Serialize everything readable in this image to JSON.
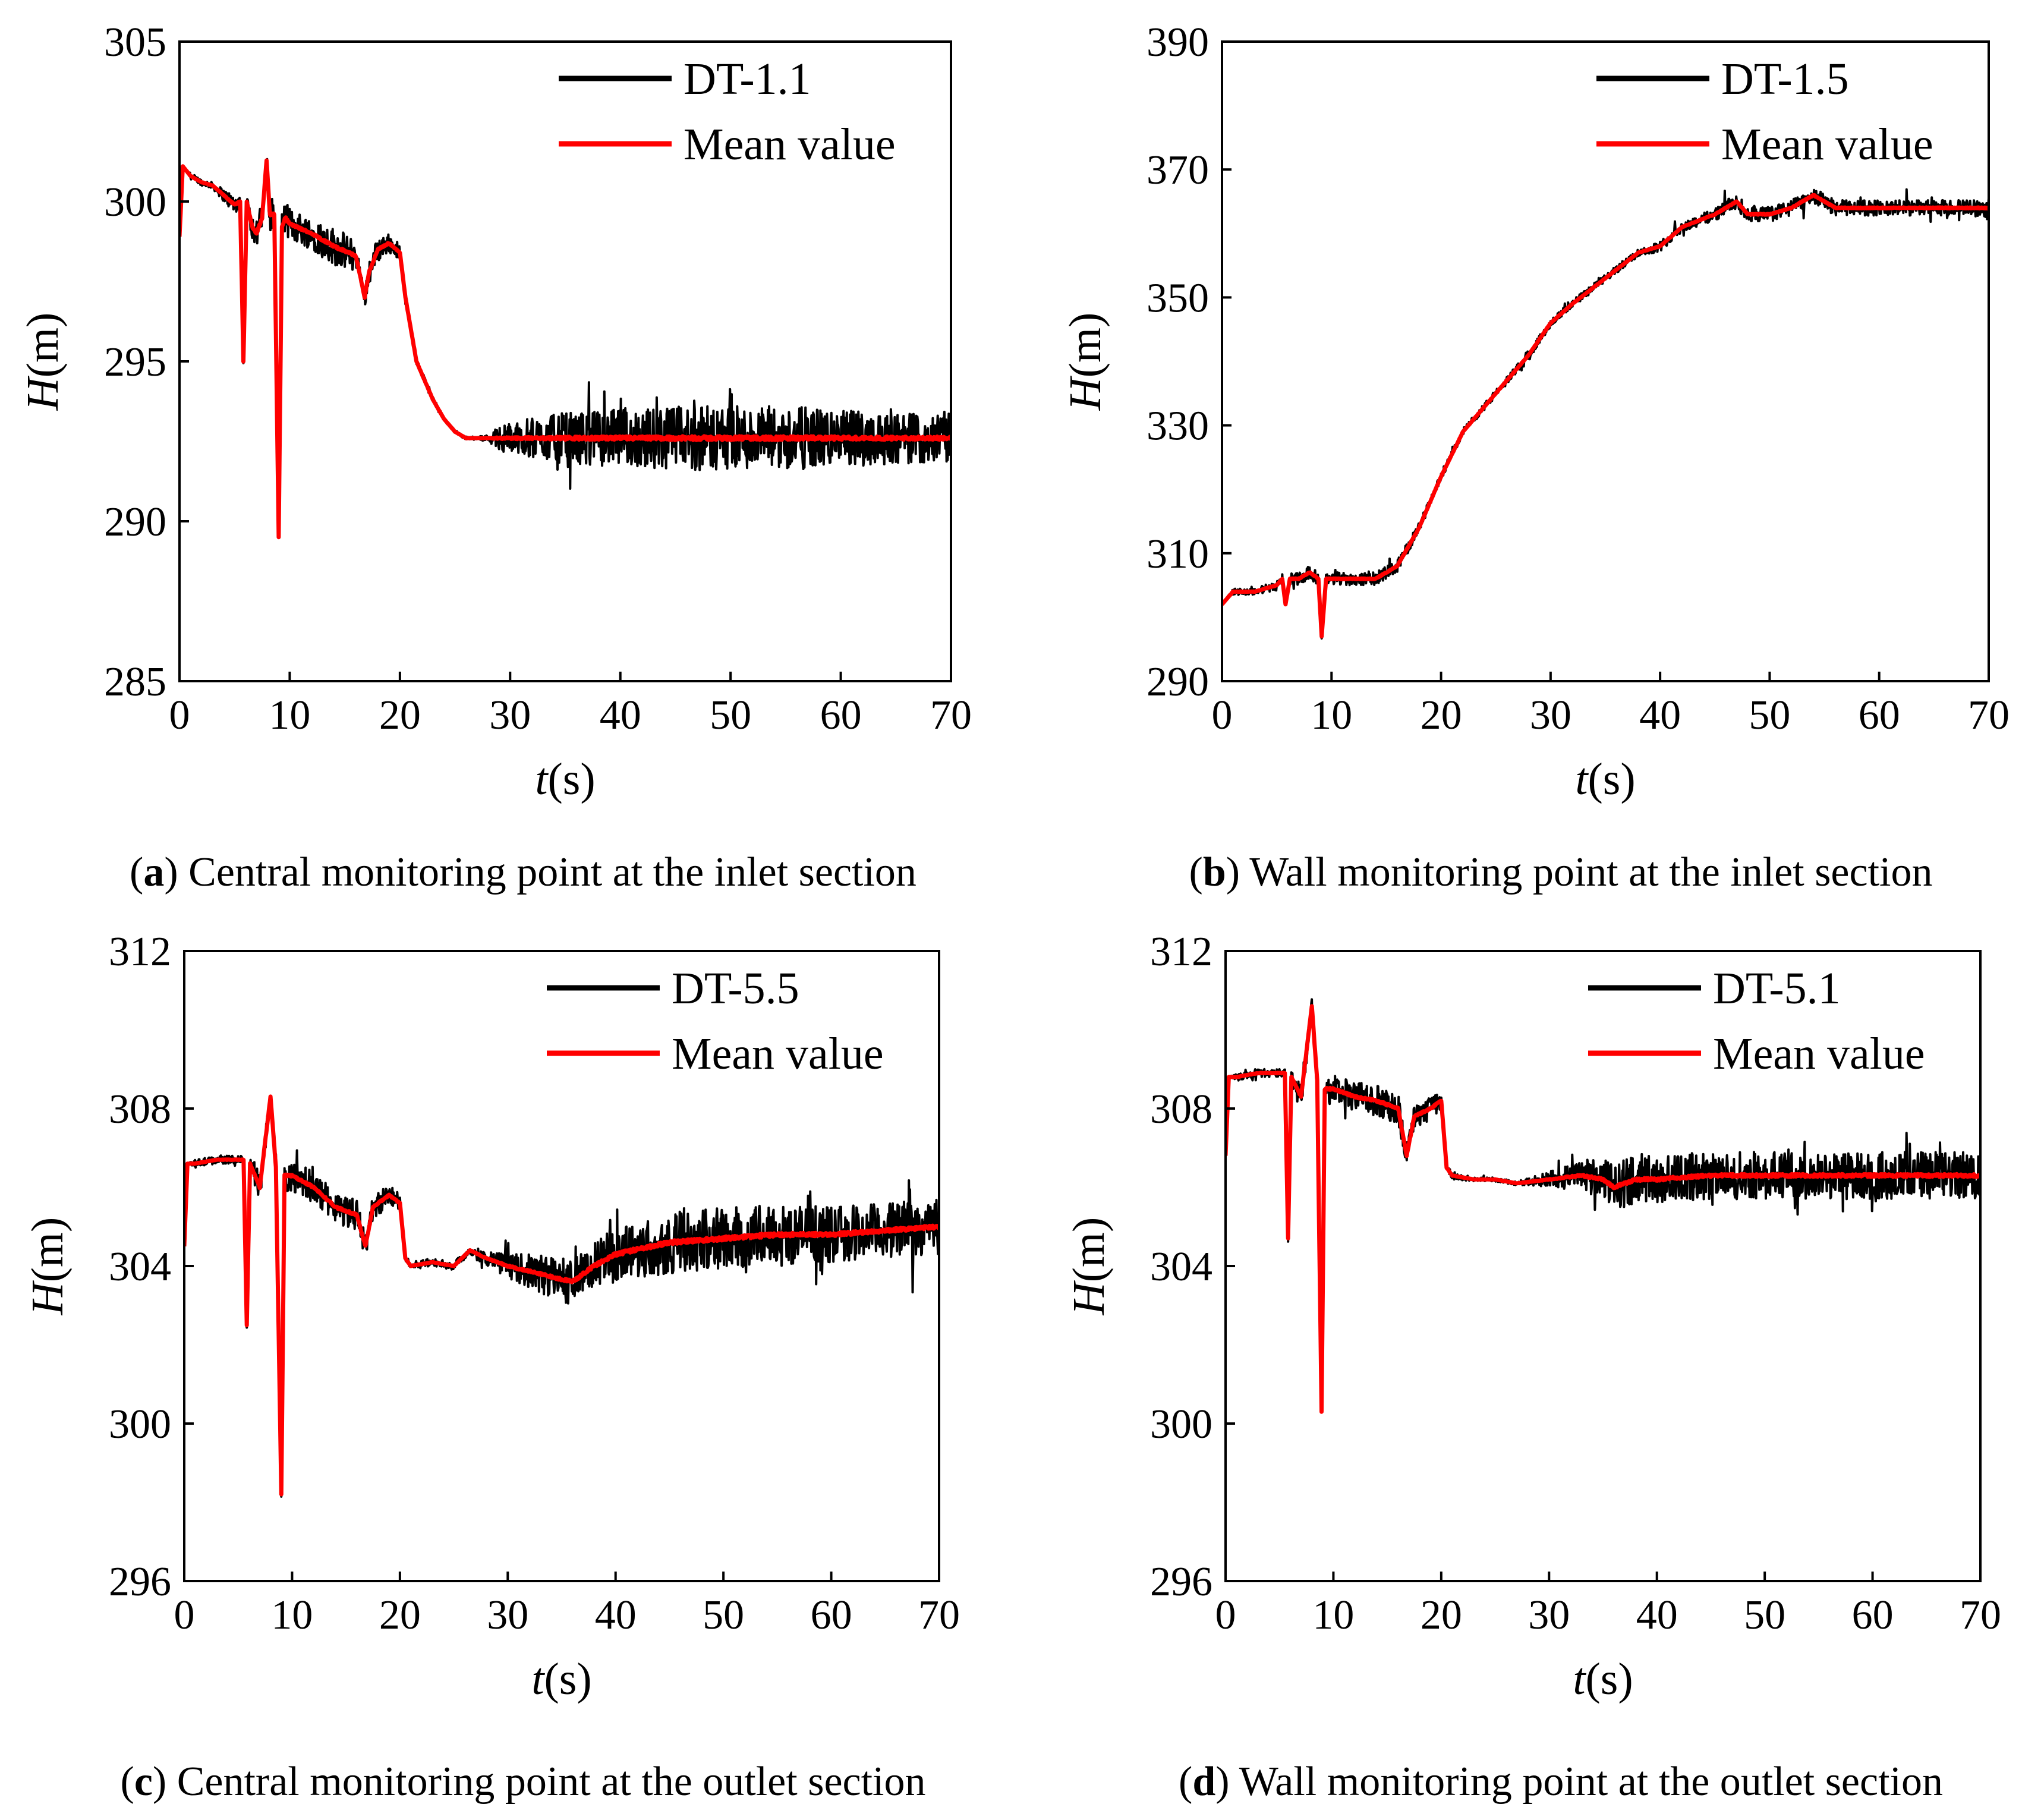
{
  "chart_data": [
    {
      "type": "line",
      "panel": "a",
      "caption_letter": "a",
      "caption_text": " Central monitoring point at the inlet section",
      "xlabel_var": "t",
      "xlabel_unit": "(s)",
      "ylabel_var": "H",
      "ylabel_unit": "(m)",
      "xlim": [
        0,
        70
      ],
      "ylim": [
        285,
        305
      ],
      "xticks": [
        0,
        10,
        20,
        30,
        40,
        50,
        60,
        70
      ],
      "yticks": [
        285,
        290,
        295,
        300,
        305
      ],
      "legend_position": "top-right",
      "series": [
        {
          "name": "DT-1.1",
          "color": "#000000"
        },
        {
          "name": "Mean value",
          "color": "#ff0000"
        }
      ],
      "x": [
        0,
        0.3,
        1,
        2,
        3,
        4,
        5,
        5.5,
        5.8,
        6.1,
        6.6,
        7,
        7.5,
        7.9,
        8.2,
        8.6,
        9,
        9.3,
        9.6,
        10,
        12,
        14,
        16,
        16.8,
        17.2,
        18,
        19,
        20,
        20.5,
        21,
        21.5,
        22,
        23,
        24,
        25,
        26,
        27,
        28,
        29,
        30,
        35,
        40,
        45,
        50,
        55,
        60,
        65,
        70
      ],
      "mean": [
        298.9,
        301.1,
        300.8,
        300.6,
        300.5,
        300.2,
        299.9,
        300.0,
        295.0,
        300.0,
        299.2,
        299.0,
        299.5,
        301.3,
        299.6,
        299.6,
        289.5,
        299.2,
        299.5,
        299.3,
        299.0,
        298.6,
        298.3,
        297.0,
        297.8,
        298.5,
        298.7,
        298.4,
        297.0,
        296.0,
        295.0,
        294.6,
        293.8,
        293.2,
        292.8,
        292.6,
        292.6,
        292.6,
        292.6,
        292.6,
        292.6,
        292.6,
        292.6,
        292.6,
        292.6,
        292.6,
        292.6,
        292.6
      ],
      "noise_amp": [
        0,
        0,
        0.1,
        0.1,
        0.1,
        0.2,
        0.3,
        0.2,
        0.1,
        0.2,
        0.4,
        0.5,
        0.5,
        0.3,
        0.5,
        0.5,
        0.1,
        0.5,
        0.5,
        0.5,
        0.5,
        0.6,
        0.5,
        0.3,
        0.4,
        0.4,
        0.3,
        0.2,
        0.1,
        0.1,
        0.1,
        0.1,
        0.1,
        0.05,
        0.05,
        0.05,
        0.05,
        0.1,
        0.4,
        0.5,
        0.8,
        0.9,
        1.0,
        1.0,
        1.0,
        0.9,
        0.8,
        0.8
      ]
    },
    {
      "type": "line",
      "panel": "b",
      "caption_letter": "b",
      "caption_text": " Wall monitoring point at the inlet section",
      "xlabel_var": "t",
      "xlabel_unit": "(s)",
      "ylabel_var": "H",
      "ylabel_unit": "(m)",
      "xlim": [
        0,
        70
      ],
      "ylim": [
        290,
        390
      ],
      "xticks": [
        0,
        10,
        20,
        30,
        40,
        50,
        60,
        70
      ],
      "yticks": [
        290,
        310,
        330,
        350,
        370,
        390
      ],
      "legend_position": "top-right",
      "series": [
        {
          "name": "DT-1.5",
          "color": "#000000"
        },
        {
          "name": "Mean value",
          "color": "#ff0000"
        }
      ],
      "x": [
        0,
        1,
        3,
        5,
        5.5,
        5.8,
        6.2,
        7,
        8,
        8.8,
        9.1,
        9.5,
        10,
        12,
        14,
        16,
        18,
        20,
        22,
        25,
        28,
        30,
        32,
        35,
        38,
        40,
        42,
        45,
        46,
        47,
        48,
        50,
        52,
        54,
        56,
        58,
        60,
        62,
        64,
        66,
        68,
        70
      ],
      "mean": [
        302,
        304,
        304,
        305,
        306,
        302,
        306,
        306,
        307,
        306,
        297,
        306,
        306,
        306,
        306,
        308,
        314,
        322,
        329,
        335,
        341,
        346,
        349,
        353,
        357,
        358,
        361,
        363,
        364,
        365,
        363,
        363,
        364,
        366,
        364,
        364,
        364,
        364,
        364,
        364,
        364,
        364
      ],
      "noise_amp": [
        0,
        0.5,
        0.5,
        0.8,
        0.8,
        0.5,
        1.0,
        1.0,
        1.0,
        1.0,
        0.5,
        1.0,
        1.0,
        1.0,
        1.0,
        1.0,
        0.8,
        0.6,
        0.5,
        0.6,
        0.6,
        0.6,
        0.6,
        0.6,
        0.6,
        0.8,
        0.8,
        1.0,
        1.2,
        1.2,
        1.2,
        1.2,
        1.2,
        1.2,
        1.2,
        1.2,
        1.2,
        1.2,
        1.2,
        1.2,
        1.2,
        1.5
      ]
    },
    {
      "type": "line",
      "panel": "c",
      "caption_letter": "c",
      "caption_text": " Central monitoring point at the outlet section",
      "xlabel_var": "t",
      "xlabel_unit": "(s)",
      "ylabel_var": "H",
      "ylabel_unit": "(m)",
      "xlim": [
        0,
        70
      ],
      "ylim": [
        296,
        312
      ],
      "xticks": [
        0,
        10,
        20,
        30,
        40,
        50,
        60,
        70
      ],
      "yticks": [
        296,
        300,
        304,
        308,
        312
      ],
      "legend_position": "top-right",
      "series": [
        {
          "name": "DT-5.5",
          "color": "#000000"
        },
        {
          "name": "Mean value",
          "color": "#ff0000"
        }
      ],
      "x": [
        0,
        0.3,
        1,
        3,
        5,
        5.5,
        5.8,
        6.1,
        7,
        8,
        8.5,
        9.0,
        9.3,
        10,
        12,
        14,
        16,
        16.8,
        17.5,
        19,
        20,
        20.5,
        21,
        23,
        25,
        26.5,
        28,
        30,
        33,
        36,
        38,
        40,
        45,
        50,
        55,
        60,
        65,
        70
      ],
      "mean": [
        304.5,
        306.6,
        306.6,
        306.7,
        306.7,
        306.7,
        302.5,
        306.6,
        306.0,
        308.3,
        306.5,
        298.2,
        306.3,
        306.3,
        306.0,
        305.5,
        305.3,
        304.5,
        305.5,
        305.8,
        305.6,
        304.2,
        304.0,
        304.1,
        304.0,
        304.4,
        304.2,
        304.0,
        303.8,
        303.6,
        304.0,
        304.3,
        304.6,
        304.7,
        304.8,
        304.8,
        304.9,
        305.0
      ],
      "noise_amp": [
        0,
        0,
        0.1,
        0.1,
        0.1,
        0.1,
        0.1,
        0.2,
        0.4,
        0.2,
        0.4,
        0.1,
        0.4,
        0.4,
        0.4,
        0.4,
        0.4,
        0.3,
        0.3,
        0.3,
        0.2,
        0.1,
        0.1,
        0.1,
        0.1,
        0.1,
        0.2,
        0.3,
        0.5,
        0.6,
        0.6,
        0.7,
        0.8,
        0.8,
        0.8,
        0.7,
        0.7,
        0.7
      ]
    },
    {
      "type": "line",
      "panel": "d",
      "caption_letter": "d",
      "caption_text": " Wall monitoring point at the outlet section",
      "xlabel_var": "t",
      "xlabel_unit": "(s)",
      "ylabel_var": "H",
      "ylabel_unit": "(m)",
      "xlim": [
        0,
        70
      ],
      "ylim": [
        296,
        312
      ],
      "xticks": [
        0,
        10,
        20,
        30,
        40,
        50,
        60,
        70
      ],
      "yticks": [
        296,
        300,
        304,
        308,
        312
      ],
      "legend_position": "top-right",
      "series": [
        {
          "name": "DT-5.1",
          "color": "#000000"
        },
        {
          "name": "Mean value",
          "color": "#ff0000"
        }
      ],
      "x": [
        0,
        0.3,
        1,
        3,
        5,
        5.5,
        5.8,
        6.1,
        7,
        8,
        8.5,
        8.9,
        9.2,
        10,
        12,
        14,
        16,
        16.8,
        17.5,
        19,
        20,
        20.5,
        21,
        23,
        25,
        27,
        30,
        33,
        35,
        36,
        38,
        40,
        45,
        50,
        55,
        60,
        65,
        70
      ],
      "mean": [
        306.8,
        308.8,
        308.8,
        308.9,
        308.9,
        308.9,
        304.7,
        308.8,
        308.3,
        310.6,
        308.7,
        300.3,
        308.5,
        308.5,
        308.3,
        308.2,
        308.0,
        306.8,
        307.8,
        308.0,
        308.2,
        306.5,
        306.3,
        306.2,
        306.2,
        306.1,
        306.2,
        306.3,
        306.2,
        306.0,
        306.2,
        306.2,
        306.3,
        306.3,
        306.3,
        306.3,
        306.3,
        306.3
      ],
      "noise_amp": [
        0,
        0,
        0.1,
        0.1,
        0.1,
        0.1,
        0.1,
        0.2,
        0.4,
        0.2,
        0.4,
        0.1,
        0.4,
        0.4,
        0.4,
        0.4,
        0.4,
        0.3,
        0.3,
        0.3,
        0.2,
        0.1,
        0.1,
        0.05,
        0.05,
        0.05,
        0.2,
        0.4,
        0.5,
        0.6,
        0.6,
        0.6,
        0.6,
        0.6,
        0.6,
        0.6,
        0.6,
        0.6
      ]
    }
  ]
}
